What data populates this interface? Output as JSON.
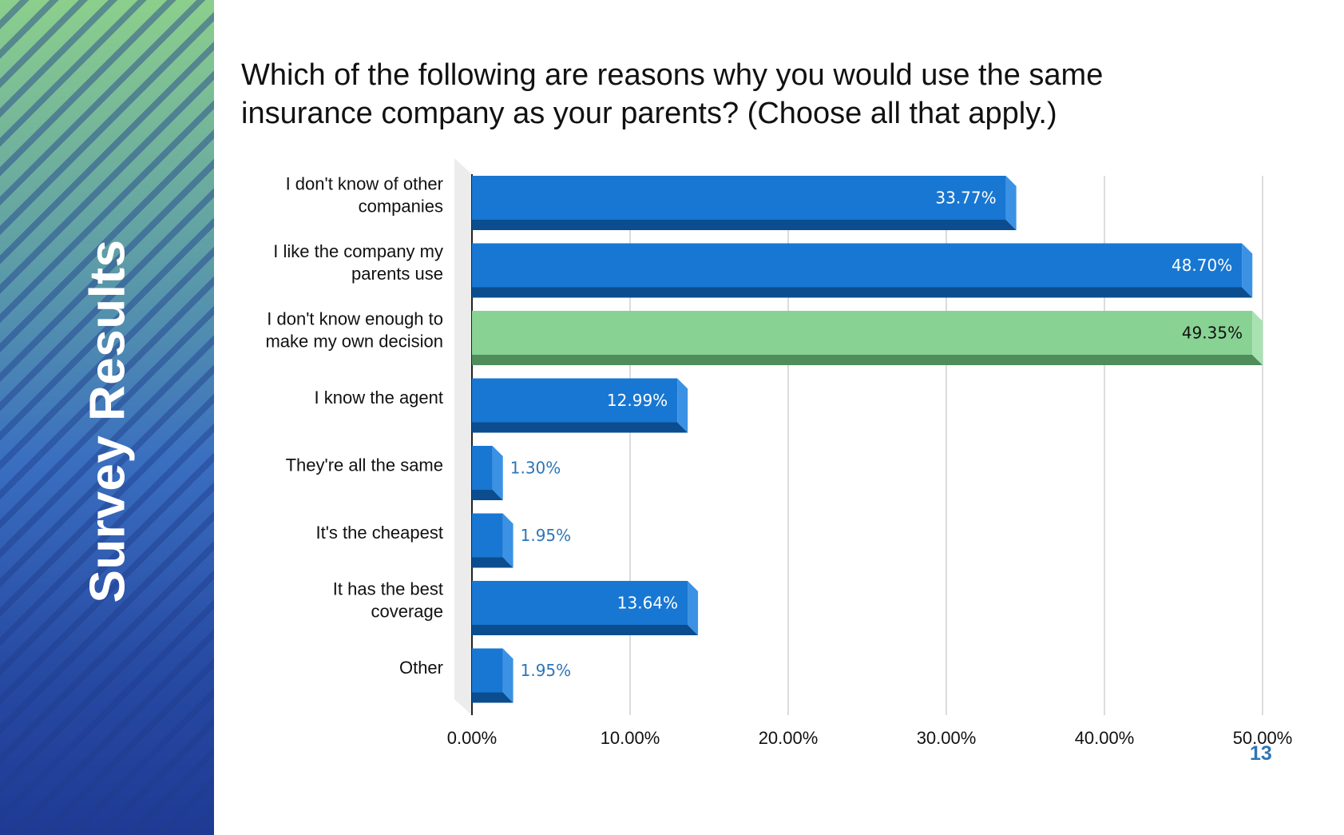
{
  "sidebar": {
    "title": "Survey Results"
  },
  "page_number": "13",
  "colors": {
    "bar_face": "#1877d2",
    "bar_bottom": "#0b4d8f",
    "bar_side": "#3b92e4",
    "highlight_face": "#88d294",
    "highlight_bottom": "#4f8d5b",
    "highlight_side": "#a8e2b1",
    "outside_label": "#2e75b6",
    "grid": "#d0d0d0"
  },
  "chart_data": {
    "type": "bar",
    "orientation": "horizontal",
    "title": "Which of the following are reasons why you would use the same insurance company as your parents? (Choose all that apply.)",
    "categories": [
      [
        "I don't know of other",
        "companies"
      ],
      [
        "I like the company my",
        "parents use"
      ],
      [
        "I don't know enough to",
        "make my own decision"
      ],
      [
        "I know the agent"
      ],
      [
        "They're all the same"
      ],
      [
        "It's the cheapest"
      ],
      [
        "It has the best",
        "coverage"
      ],
      [
        "Other"
      ]
    ],
    "values": [
      33.77,
      48.7,
      49.35,
      12.99,
      1.3,
      1.95,
      13.64,
      1.95
    ],
    "value_labels": [
      "33.77%",
      "48.70%",
      "49.35%",
      "12.99%",
      "1.30%",
      "1.95%",
      "13.64%",
      "1.95%"
    ],
    "highlight_index": 2,
    "xlim": [
      0,
      50
    ],
    "x_ticks": [
      0,
      10,
      20,
      30,
      40,
      50
    ],
    "x_tick_labels": [
      "0.00%",
      "10.00%",
      "20.00%",
      "30.00%",
      "40.00%",
      "50.00%"
    ],
    "grid": true,
    "style": "3d"
  }
}
